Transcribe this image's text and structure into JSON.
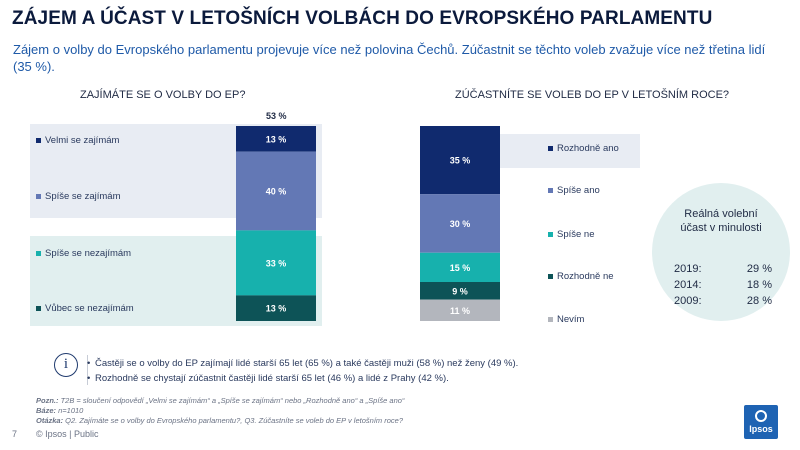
{
  "title": "ZÁJEM A ÚČAST V LETOŠNÍCH VOLBÁCH DO EVROPSKÉHO PARLAMENTU",
  "subtitle": "Zájem o volby do Evropského parlamentu projevuje více než polovina Čechů. Zúčastnit se těchto voleb zvažuje více než třetina lidí (35 %).",
  "chart_data": [
    {
      "type": "bar",
      "stacked": true,
      "title": "ZAJÍMÁTE SE O VOLBY DO EP?",
      "total_label": "53 %",
      "categories": [
        "Velmi se zajímám",
        "Spíše se zajímám",
        "Spíše se nezajímám",
        "Vůbec se nezajímám"
      ],
      "values": [
        13,
        40,
        33,
        13
      ],
      "labels": [
        "13 %",
        "40 %",
        "33 %",
        "13 %"
      ],
      "colors": [
        "#102a6e",
        "#6378b5",
        "#17b1ad",
        "#0d5357"
      ],
      "ylim": [
        0,
        100
      ]
    },
    {
      "type": "bar",
      "stacked": true,
      "title": "ZÚČASTNÍTE SE VOLEB DO EP V LETOŠNÍM ROCE?",
      "categories": [
        "Rozhodně ano",
        "Spíše ano",
        "Spíše ne",
        "Rozhodně ne",
        "Nevím"
      ],
      "values": [
        35,
        30,
        15,
        9,
        11
      ],
      "labels": [
        "35 %",
        "30 %",
        "15 %",
        "9 %",
        "11 %"
      ],
      "colors": [
        "#102a6e",
        "#6378b5",
        "#17b1ad",
        "#0d5357",
        "#b3b6bd"
      ],
      "ylim": [
        0,
        100
      ]
    }
  ],
  "callout": {
    "title": "Reálná volební účast v minulosti",
    "rows": [
      {
        "year": "2019:",
        "value": "29 %"
      },
      {
        "year": "2014:",
        "value": "18 %"
      },
      {
        "year": "2009:",
        "value": "28 %"
      }
    ]
  },
  "notes": {
    "icon": "info-icon",
    "items": [
      "Častěji se o volby do EP zajímají lidé starší 65 let (65 %) a také častěji muži (58 %) než ženy (49 %).",
      "Rozhodně se chystají zúčastnit častěji lidé starší 65 let (46 %) a lidé z Prahy (42 %)."
    ]
  },
  "footnotes": {
    "pozn_label": "Pozn.:",
    "pozn_text": " T2B = sloučení odpovědí „Velmi se zajímám“ a „Spíše se zajímám“ nebo „Rozhodně ano“ a „Spíše ano“",
    "baze_label": "Báze:",
    "baze_text": " n=1010",
    "otazka_label": "Otázka:",
    "otazka_text": " Q2. Zajímáte se o volby do Evropského parlamentu?, Q3. Zúčastníte se voleb do EP v letošním roce?"
  },
  "page_number": "7",
  "copyright": "© Ipsos | Public",
  "logo": "Ipsos"
}
